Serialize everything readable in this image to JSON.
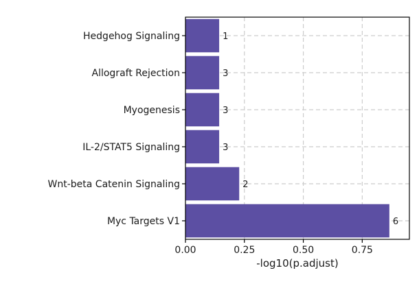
{
  "chart_data": {
    "type": "bar",
    "orientation": "horizontal",
    "categories": [
      "Hedgehog Signaling",
      "Allograft Rejection",
      "Myogenesis",
      "IL-2/STAT5 Signaling",
      "Wnt-beta Catenin Signaling",
      "Myc Targets V1"
    ],
    "values": [
      0.143,
      0.143,
      0.143,
      0.143,
      0.228,
      0.865
    ],
    "bar_labels": [
      "1",
      "3",
      "3",
      "3",
      "2",
      "6"
    ],
    "xlabel": "-log10(p.adjust)",
    "ylabel": "",
    "xlim": [
      0,
      0.95
    ],
    "x_ticks": [
      0,
      0.25,
      0.5,
      0.75
    ],
    "x_tick_labels": [
      "0.00",
      "0.25",
      "0.50",
      "0.75"
    ],
    "grid": true,
    "bar_color": "#5c4fa3",
    "grid_color": "#cccccc"
  }
}
